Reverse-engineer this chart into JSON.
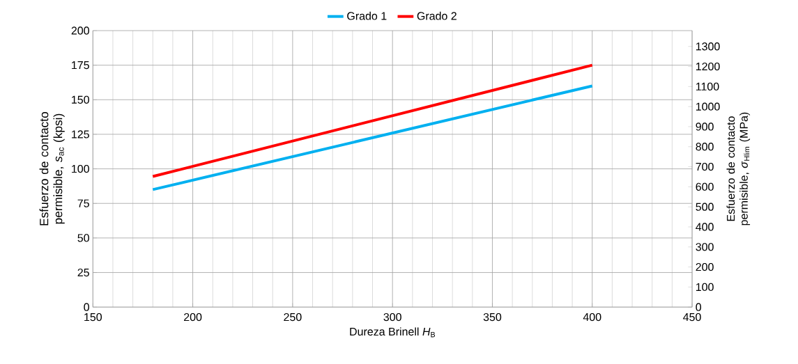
{
  "chart_data": {
    "type": "line",
    "xlabel": "Dureza Brinell *H*$_{B}$",
    "ylabel": "Esfuerzo de contacto permisible, *s*$_{ac}$ (kpsi)",
    "y2label": "Esfuerzo de contacto permisible, *σ*$_{Hlim}$ (MPa)",
    "x": [
      180,
      400
    ],
    "series": [
      {
        "name": "Grado 1",
        "color": "#00b0f0",
        "values": [
          85,
          160
        ]
      },
      {
        "name": "Grado 2",
        "color": "#ff0000",
        "values": [
          94.5,
          175
        ]
      }
    ],
    "xlim": [
      150,
      450
    ],
    "xticks": [
      150,
      200,
      250,
      300,
      350,
      400,
      450
    ],
    "ylim": [
      0,
      200
    ],
    "yticks": [
      0,
      25,
      50,
      75,
      100,
      125,
      150,
      175,
      200
    ],
    "y2lim": [
      0,
      1379
    ],
    "y2ticks": [
      0,
      100,
      200,
      300,
      400,
      500,
      600,
      700,
      800,
      900,
      1000,
      1100,
      1200,
      1300
    ],
    "grid": true,
    "legend": "top",
    "marker": "none",
    "line_style": "solid"
  }
}
